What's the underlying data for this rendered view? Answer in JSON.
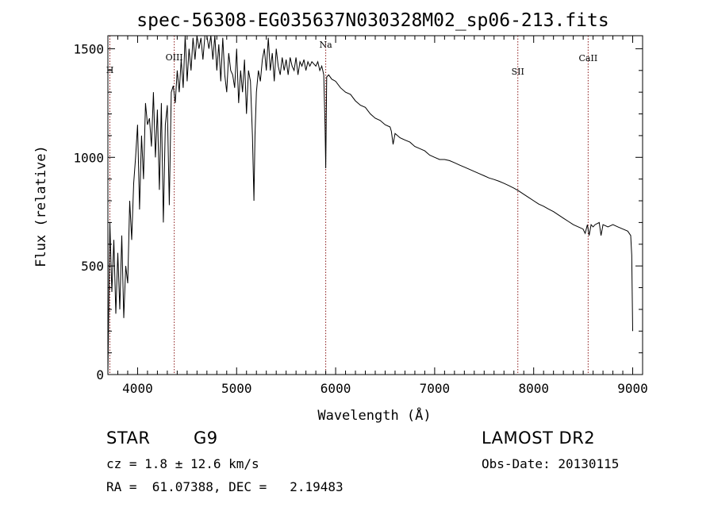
{
  "chart_data": {
    "type": "line",
    "title": "spec-56308-EG035637N030328M02_sp06-213.fits",
    "xlabel": "Wavelength (Å)",
    "ylabel": "Flux (relative)",
    "xlim": [
      3700,
      9100
    ],
    "ylim": [
      0,
      1560
    ],
    "xticks": [
      4000,
      5000,
      6000,
      7000,
      8000,
      9000
    ],
    "yticks": [
      0,
      500,
      1000,
      1500
    ],
    "grid": false,
    "line_color": "#000000",
    "marker_color": "#8b1a1a",
    "lines": [
      {
        "label": "H",
        "x": 3720
      },
      {
        "label": "OIII",
        "x": 4370
      },
      {
        "label": "Na",
        "x": 5900
      },
      {
        "label": "SII",
        "x": 7840
      },
      {
        "label": "CaII",
        "x": 8550
      }
    ],
    "series": [
      {
        "x": [
          3700,
          3720,
          3740,
          3760,
          3780,
          3800,
          3820,
          3840,
          3860,
          3880,
          3900,
          3920,
          3940,
          3960,
          3980,
          4000,
          4020,
          4040,
          4060,
          4080,
          4100,
          4120,
          4140,
          4160,
          4180,
          4200,
          4220,
          4240,
          4260,
          4280,
          4300,
          4320,
          4340,
          4360,
          4380,
          4400,
          4420,
          4440,
          4460,
          4480,
          4500,
          4520,
          4540,
          4560,
          4580,
          4600,
          4620,
          4640,
          4660,
          4680,
          4700,
          4720,
          4740,
          4760,
          4780,
          4800,
          4820,
          4840,
          4860,
          4880,
          4900,
          4920,
          4940,
          4960,
          4980,
          5000,
          5020,
          5040,
          5060,
          5080,
          5100,
          5120,
          5140,
          5160,
          5175,
          5185,
          5200,
          5220,
          5240,
          5260,
          5280,
          5300,
          5320,
          5340,
          5360,
          5380,
          5400,
          5420,
          5440,
          5460,
          5480,
          5500,
          5520,
          5540,
          5560,
          5580,
          5600,
          5620,
          5640,
          5660,
          5680,
          5700,
          5720,
          5740,
          5760,
          5780,
          5800,
          5820,
          5840,
          5860,
          5880,
          5893,
          5900,
          5910,
          5930,
          5960,
          6000,
          6050,
          6100,
          6150,
          6200,
          6250,
          6300,
          6350,
          6400,
          6450,
          6500,
          6550,
          6563,
          6580,
          6600,
          6650,
          6700,
          6750,
          6800,
          6850,
          6900,
          6950,
          7000,
          7050,
          7100,
          7150,
          7200,
          7250,
          7300,
          7350,
          7400,
          7450,
          7500,
          7550,
          7600,
          7650,
          7700,
          7750,
          7800,
          7850,
          7900,
          7950,
          8000,
          8050,
          8100,
          8150,
          8200,
          8250,
          8300,
          8350,
          8400,
          8450,
          8498,
          8520,
          8542,
          8560,
          8580,
          8600,
          8620,
          8662,
          8680,
          8700,
          8750,
          8800,
          8850,
          8900,
          8950,
          8980,
          8990,
          9000
        ],
        "y": [
          0,
          700,
          380,
          620,
          280,
          560,
          300,
          640,
          260,
          500,
          420,
          800,
          620,
          880,
          1000,
          1150,
          760,
          1100,
          900,
          1250,
          1150,
          1180,
          1050,
          1300,
          1000,
          1220,
          850,
          1250,
          700,
          1150,
          1240,
          780,
          1300,
          1330,
          1250,
          1400,
          1300,
          1450,
          1320,
          1600,
          1350,
          1500,
          1400,
          1550,
          1450,
          1620,
          1500,
          1550,
          1450,
          1620,
          1600,
          1500,
          1640,
          1450,
          1600,
          1400,
          1520,
          1350,
          1550,
          1380,
          1300,
          1480,
          1400,
          1380,
          1320,
          1500,
          1250,
          1400,
          1300,
          1450,
          1200,
          1400,
          1350,
          1100,
          800,
          1100,
          1300,
          1400,
          1350,
          1450,
          1500,
          1400,
          1550,
          1400,
          1480,
          1350,
          1500,
          1420,
          1380,
          1460,
          1400,
          1450,
          1380,
          1460,
          1420,
          1400,
          1460,
          1380,
          1440,
          1420,
          1450,
          1400,
          1440,
          1420,
          1440,
          1430,
          1420,
          1440,
          1400,
          1420,
          1380,
          1150,
          950,
          1370,
          1380,
          1360,
          1350,
          1320,
          1300,
          1290,
          1260,
          1240,
          1230,
          1200,
          1180,
          1170,
          1150,
          1140,
          1120,
          1060,
          1110,
          1090,
          1080,
          1070,
          1050,
          1040,
          1030,
          1010,
          1000,
          990,
          990,
          985,
          975,
          965,
          955,
          945,
          935,
          925,
          915,
          905,
          898,
          890,
          880,
          870,
          858,
          845,
          830,
          815,
          800,
          785,
          775,
          762,
          750,
          735,
          720,
          705,
          690,
          680,
          670,
          650,
          690,
          640,
          690,
          680,
          690,
          700,
          640,
          690,
          680,
          690,
          680,
          670,
          660,
          640,
          550,
          200
        ]
      }
    ]
  },
  "info": {
    "class": "STAR",
    "subclass": "G9",
    "survey": "LAMOST DR2",
    "cz": "cz = 1.8 ± 12.6 km/s",
    "obs_date": "Obs-Date: 20130115",
    "coords": "RA =  61.07388, DEC =   2.19483"
  }
}
